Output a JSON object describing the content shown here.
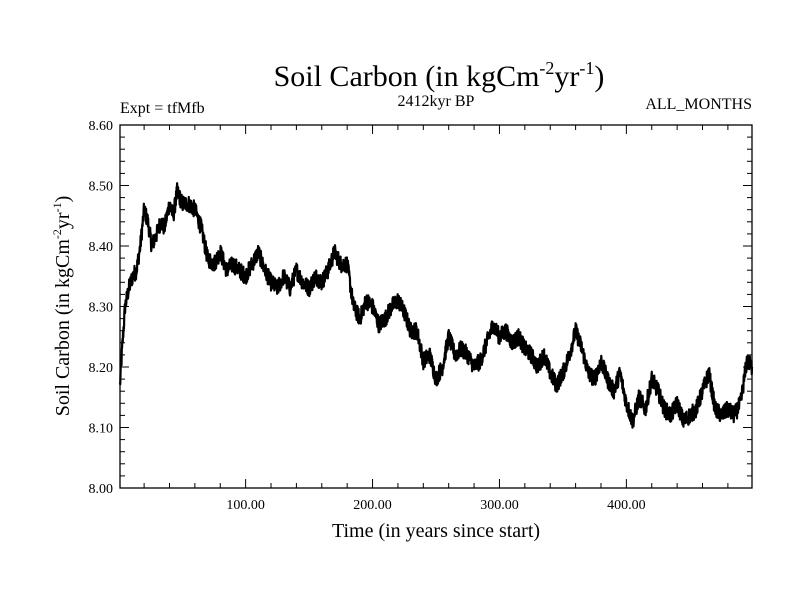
{
  "chart_data": {
    "type": "line",
    "title": "Soil Carbon (in kgCm",
    "title_sup1": "-2",
    "title_mid": "yr",
    "title_sup2": "-1",
    "title_end": ")",
    "subtitle_left": "Expt = tfMfb",
    "subtitle_center": "2412kyr BP",
    "subtitle_right": "ALL_MONTHS",
    "xlabel": "Time (in years since start)",
    "ylabel_main": "Soil Carbon (in kgCm",
    "ylabel_sup1": "-2",
    "ylabel_mid": "yr",
    "ylabel_sup2": "-1",
    "ylabel_end": ")",
    "xlim": [
      1,
      499
    ],
    "ylim": [
      8.0,
      8.6
    ],
    "xticks": [
      {
        "value": 100,
        "label": "100.00"
      },
      {
        "value": 200,
        "label": "200.00"
      },
      {
        "value": 300,
        "label": "300.00"
      },
      {
        "value": 400,
        "label": "400.00"
      }
    ],
    "yticks": [
      {
        "value": 8.0,
        "label": "8.00"
      },
      {
        "value": 8.1,
        "label": "8.10"
      },
      {
        "value": 8.2,
        "label": "8.20"
      },
      {
        "value": 8.3,
        "label": "8.30"
      },
      {
        "value": 8.4,
        "label": "8.40"
      },
      {
        "value": 8.5,
        "label": "8.50"
      },
      {
        "value": 8.6,
        "label": "8.60"
      }
    ],
    "series": [
      {
        "name": "Soil Carbon",
        "color": "#000000",
        "x": [
          1,
          3,
          5,
          8,
          11,
          14,
          17,
          20,
          23,
          26,
          30,
          33,
          36,
          40,
          43,
          46,
          50,
          55,
          60,
          65,
          70,
          75,
          80,
          85,
          90,
          95,
          100,
          105,
          110,
          115,
          120,
          125,
          130,
          135,
          140,
          145,
          150,
          155,
          160,
          165,
          170,
          175,
          180,
          185,
          190,
          195,
          200,
          205,
          210,
          215,
          220,
          225,
          230,
          235,
          240,
          245,
          250,
          255,
          260,
          265,
          270,
          275,
          280,
          285,
          290,
          295,
          300,
          305,
          310,
          315,
          320,
          325,
          330,
          335,
          340,
          345,
          350,
          355,
          360,
          365,
          370,
          375,
          380,
          385,
          390,
          395,
          400,
          405,
          410,
          415,
          420,
          425,
          430,
          435,
          440,
          445,
          450,
          455,
          460,
          465,
          470,
          475,
          480,
          485,
          490,
          495,
          499
        ],
        "values": [
          8.17,
          8.24,
          8.3,
          8.33,
          8.35,
          8.36,
          8.4,
          8.46,
          8.44,
          8.4,
          8.42,
          8.44,
          8.43,
          8.47,
          8.45,
          8.49,
          8.47,
          8.47,
          8.46,
          8.43,
          8.38,
          8.37,
          8.39,
          8.36,
          8.37,
          8.36,
          8.35,
          8.37,
          8.39,
          8.36,
          8.34,
          8.33,
          8.35,
          8.33,
          8.36,
          8.34,
          8.33,
          8.35,
          8.34,
          8.36,
          8.39,
          8.37,
          8.37,
          8.3,
          8.28,
          8.31,
          8.3,
          8.27,
          8.28,
          8.3,
          8.31,
          8.29,
          8.26,
          8.26,
          8.21,
          8.22,
          8.18,
          8.2,
          8.25,
          8.22,
          8.23,
          8.22,
          8.2,
          8.21,
          8.24,
          8.27,
          8.25,
          8.26,
          8.24,
          8.25,
          8.23,
          8.22,
          8.2,
          8.22,
          8.19,
          8.17,
          8.19,
          8.22,
          8.26,
          8.23,
          8.19,
          8.18,
          8.21,
          8.18,
          8.16,
          8.19,
          8.14,
          8.11,
          8.15,
          8.13,
          8.18,
          8.16,
          8.13,
          8.12,
          8.14,
          8.11,
          8.12,
          8.13,
          8.16,
          8.19,
          8.13,
          8.12,
          8.13,
          8.12,
          8.14,
          8.21,
          8.2
        ]
      }
    ]
  }
}
